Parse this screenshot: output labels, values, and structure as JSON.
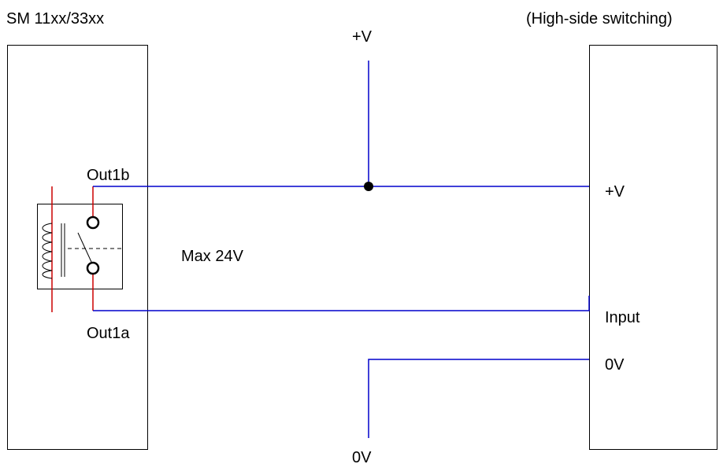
{
  "labels": {
    "module_title": "SM 11xx/33xx",
    "switching_mode": "(High-side switching)",
    "supply_top": "+V",
    "out1b": "Out1b",
    "out1a": "Out1a",
    "max_voltage": "Max 24V",
    "device_plus_v": "+V",
    "device_input": "Input",
    "device_0v": "0V",
    "ground_bottom": "0V"
  },
  "colors": {
    "wire": "#0000cc",
    "relay_lead": "#cc0000",
    "outline": "#000000"
  }
}
